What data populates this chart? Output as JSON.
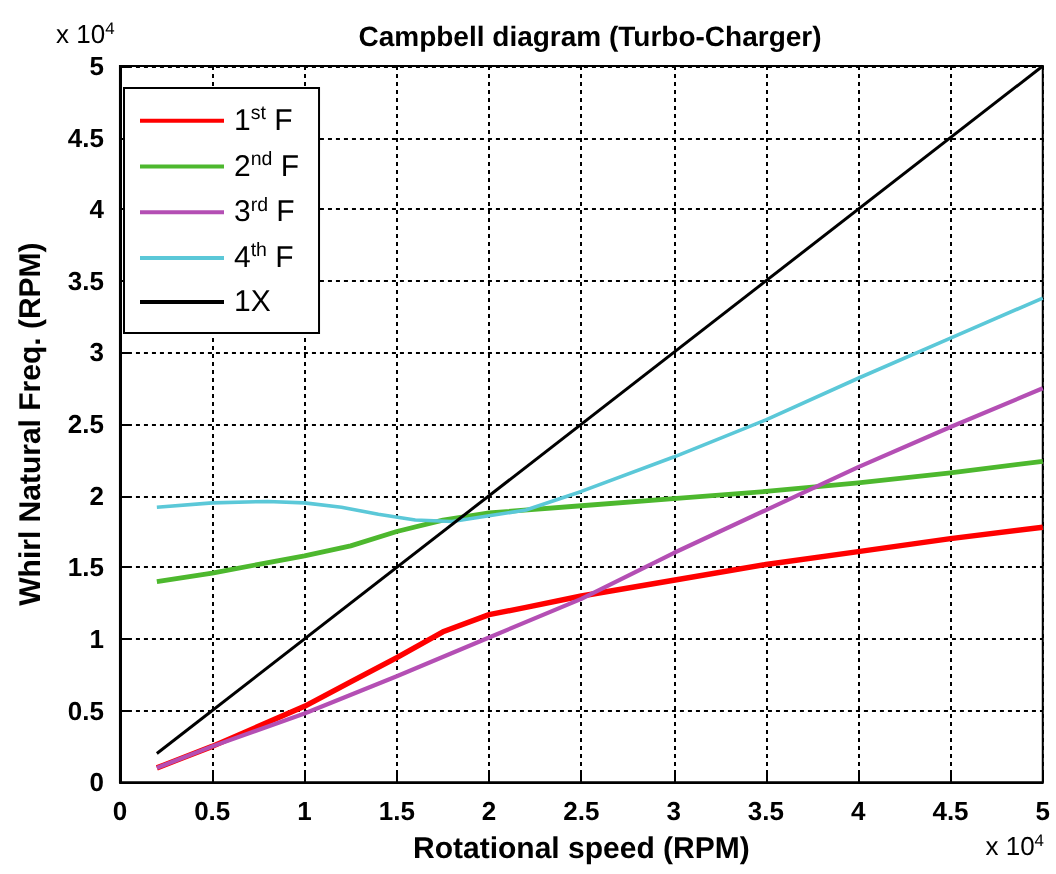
{
  "chart_data": {
    "type": "line",
    "title": "Campbell diagram (Turbo-Charger)",
    "xlabel": "Rotational speed (RPM)",
    "ylabel": "Whirl Natural Freq. (RPM)",
    "annotations": [
      "x 10$^{4}$",
      "x 10$^{4}$"
    ],
    "xlim": [
      0,
      5
    ],
    "xticks": [
      0,
      0.5,
      1,
      1.5,
      2,
      2.5,
      3,
      3.5,
      4,
      4.5,
      5
    ],
    "ylim": [
      0,
      5
    ],
    "yticks": [
      0,
      0.5,
      1,
      1.5,
      2,
      2.5,
      3,
      3.5,
      4,
      4.5,
      5
    ],
    "grid": true,
    "legend": "top left",
    "line_style": "solid",
    "marker": "none",
    "series": [
      {
        "name": "1$^{st}$ F",
        "color": "#ff0000",
        "x": [
          0.2,
          0.5,
          1,
          1.25,
          1.5,
          1.75,
          2,
          2.2,
          2.5,
          3,
          3.5,
          4,
          4.5,
          5
        ],
        "values": [
          0.1,
          0.25,
          0.53,
          0.7,
          0.87,
          1.05,
          1.17,
          1.22,
          1.3,
          1.41,
          1.52,
          1.61,
          1.7,
          1.78
        ]
      },
      {
        "name": "2$^{nd}$ F",
        "color": "#4db82e",
        "x": [
          0.2,
          0.5,
          1,
          1.25,
          1.5,
          1.75,
          2,
          2.5,
          3,
          3.5,
          4,
          4.5,
          5
        ],
        "values": [
          1.4,
          1.46,
          1.58,
          1.65,
          1.75,
          1.83,
          1.88,
          1.93,
          1.98,
          2.03,
          2.09,
          2.16,
          2.24
        ]
      },
      {
        "name": "3$^{rd}$ F",
        "color": "#b44fb4",
        "x": [
          0.2,
          0.5,
          1,
          1.5,
          2,
          2.5,
          3,
          3.5,
          4,
          4.5,
          5
        ],
        "values": [
          0.1,
          0.25,
          0.48,
          0.74,
          1.01,
          1.28,
          1.6,
          1.9,
          2.2,
          2.48,
          2.75
        ]
      },
      {
        "name": "4$^{th}$ F",
        "color": "#5bc8d8",
        "x": [
          0.2,
          0.5,
          0.8,
          1,
          1.2,
          1.4,
          1.6,
          1.8,
          2,
          2.2,
          2.5,
          3,
          3.5,
          4,
          4.5,
          5
        ],
        "values": [
          1.92,
          1.95,
          1.96,
          1.95,
          1.92,
          1.87,
          1.83,
          1.82,
          1.86,
          1.9,
          2.03,
          2.27,
          2.53,
          2.82,
          3.1,
          3.38
        ]
      },
      {
        "name": "1X",
        "color": "#000000",
        "x": [
          0.2,
          5
        ],
        "values": [
          0.2,
          5
        ]
      }
    ]
  }
}
